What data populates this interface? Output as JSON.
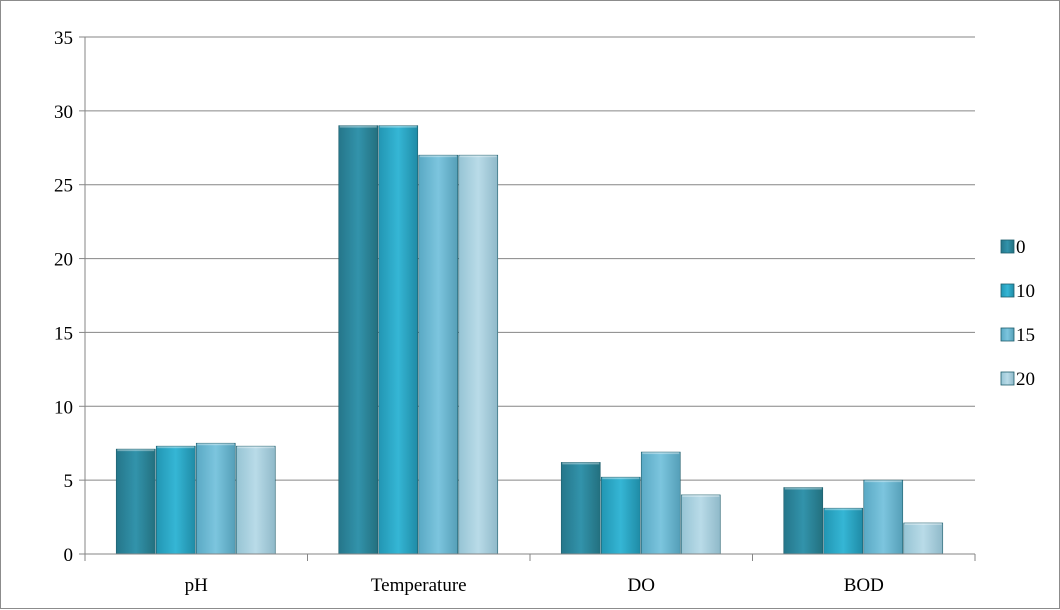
{
  "chart_data": {
    "type": "bar",
    "categories": [
      "pH",
      "Temperature",
      "DO",
      "BOD"
    ],
    "series": [
      {
        "name": "0",
        "values": [
          7.1,
          29,
          6.2,
          4.5
        ]
      },
      {
        "name": "10",
        "values": [
          7.3,
          29,
          5.2,
          3.1
        ]
      },
      {
        "name": "15",
        "values": [
          7.5,
          27,
          6.9,
          5.0
        ]
      },
      {
        "name": "20",
        "values": [
          7.3,
          27,
          4.0,
          2.1
        ]
      }
    ],
    "ylim": [
      0,
      35
    ],
    "yticks": [
      0,
      5,
      10,
      15,
      20,
      25,
      30,
      35
    ],
    "grid": true,
    "legend_position": "right",
    "colors": [
      "#2f8aa0",
      "#2eabc9",
      "#6bbbd6",
      "#a9d3e3"
    ]
  }
}
